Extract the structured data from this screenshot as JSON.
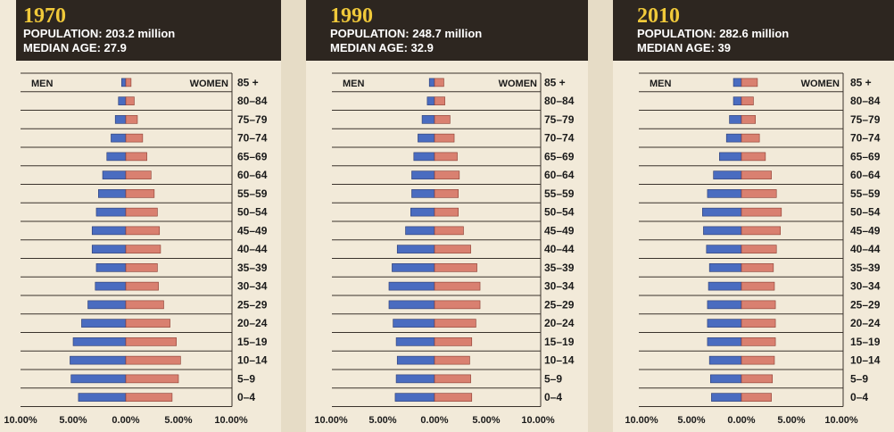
{
  "colors": {
    "men": "#4a6cc0",
    "women": "#d98070",
    "header_bg": "#2d2620",
    "year": "#f0c93a",
    "paper": "#f2ead9"
  },
  "chart_data": [
    {
      "type": "bar",
      "title": "1970",
      "lines": [
        "POPULATION: 203.2 million",
        "MEDIAN AGE: 27.9"
      ],
      "left_label": "MEN",
      "right_label": "WOMEN",
      "categories": [
        "85 +",
        "80–84",
        "75–79",
        "70–74",
        "65–69",
        "60–64",
        "55–59",
        "50–54",
        "45–49",
        "40–44",
        "35–39",
        "30–34",
        "25–29",
        "20–24",
        "15–19",
        "10–14",
        "5–9",
        "0–4"
      ],
      "series": [
        {
          "name": "MEN",
          "values": [
            -0.4,
            -0.7,
            -1.0,
            -1.4,
            -1.8,
            -2.2,
            -2.6,
            -2.8,
            -3.2,
            -3.2,
            -2.8,
            -2.9,
            -3.6,
            -4.2,
            -5.0,
            -5.3,
            -5.2,
            -4.5
          ]
        },
        {
          "name": "WOMEN",
          "values": [
            0.5,
            0.8,
            1.1,
            1.6,
            2.0,
            2.4,
            2.7,
            3.0,
            3.2,
            3.3,
            3.0,
            3.1,
            3.6,
            4.2,
            4.8,
            5.2,
            5.0,
            4.4
          ]
        }
      ],
      "xlim": [
        -10,
        10
      ],
      "tick_labels": [
        "10.00%",
        "5.00%",
        "0.00%",
        "5.00%",
        "10.00%"
      ]
    },
    {
      "type": "bar",
      "title": "1990",
      "lines": [
        "POPULATION: 248.7 million",
        "MEDIAN AGE: 32.9"
      ],
      "left_label": "MEN",
      "right_label": "WOMEN",
      "categories": [
        "85 +",
        "80–84",
        "75–79",
        "70–74",
        "65–69",
        "60–64",
        "55–59",
        "50–54",
        "45–49",
        "40–44",
        "35–39",
        "30–34",
        "25–29",
        "20–24",
        "15–19",
        "10–14",
        "5–9",
        "0–4"
      ],
      "series": [
        {
          "name": "MEN",
          "values": [
            -0.5,
            -0.7,
            -1.2,
            -1.6,
            -2.0,
            -2.2,
            -2.2,
            -2.3,
            -2.8,
            -3.6,
            -4.1,
            -4.4,
            -4.4,
            -4.0,
            -3.7,
            -3.6,
            -3.7,
            -3.8
          ]
        },
        {
          "name": "WOMEN",
          "values": [
            0.9,
            1.0,
            1.5,
            1.9,
            2.2,
            2.4,
            2.3,
            2.3,
            2.8,
            3.5,
            4.1,
            4.4,
            4.4,
            4.0,
            3.6,
            3.4,
            3.5,
            3.6
          ]
        }
      ],
      "xlim": [
        -10,
        10
      ],
      "tick_labels": [
        "10.00%",
        "5.00%",
        "0.00%",
        "5.00%",
        "10.00%"
      ]
    },
    {
      "type": "bar",
      "title": "2010",
      "lines": [
        "POPULATION: 282.6 million",
        "MEDIAN AGE: 39"
      ],
      "left_label": "MEN",
      "right_label": "WOMEN",
      "categories": [
        "85 +",
        "80–84",
        "75–79",
        "70–74",
        "65–69",
        "60–64",
        "55–59",
        "50–54",
        "45–49",
        "40–44",
        "35–39",
        "30–34",
        "25–29",
        "20–24",
        "15–19",
        "10–14",
        "5–9",
        "0–4"
      ],
      "series": [
        {
          "name": "MEN",
          "values": [
            -0.8,
            -0.8,
            -1.2,
            -1.5,
            -2.2,
            -2.8,
            -3.4,
            -3.9,
            -3.8,
            -3.5,
            -3.2,
            -3.3,
            -3.4,
            -3.4,
            -3.4,
            -3.2,
            -3.1,
            -3.0
          ]
        },
        {
          "name": "WOMEN",
          "values": [
            1.6,
            1.2,
            1.4,
            1.8,
            2.4,
            3.0,
            3.5,
            4.0,
            3.9,
            3.5,
            3.2,
            3.3,
            3.4,
            3.4,
            3.4,
            3.3,
            3.1,
            3.0
          ]
        }
      ],
      "xlim": [
        -10,
        10
      ],
      "tick_labels": [
        "10.00%",
        "5.00%",
        "0.00%",
        "5.00%",
        "10.00%"
      ]
    }
  ]
}
